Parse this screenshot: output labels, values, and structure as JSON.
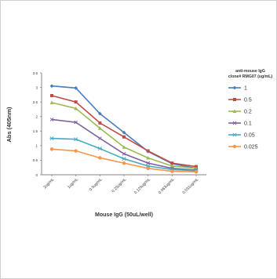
{
  "chart_data": {
    "type": "line",
    "categories": [
      "2ug/mL",
      "1ug/mL",
      "0.5ug/mL",
      "0.25ug/mL",
      "0.125ug/mL",
      "0.063ug/mL",
      "0.031ug/mL"
    ],
    "xlabel": "Mouse IgG (50uL/well)",
    "ylabel": "Abs (405nm)",
    "ylim": [
      0,
      3.5
    ],
    "yticks": [
      "0",
      "0.5",
      "1",
      "1.5",
      "2",
      "2.5",
      "3",
      "3.5"
    ],
    "grid": false,
    "legend_title": [
      "anti-mouse IgG",
      "clone# RMG07 (ug/mL)"
    ],
    "legend_position": "right",
    "series": [
      {
        "name": "1",
        "color": "#4a7ebb",
        "marker": "diamond",
        "values": [
          3.05,
          2.98,
          2.1,
          1.45,
          0.8,
          0.38,
          0.22
        ]
      },
      {
        "name": "0.5",
        "color": "#be4b48",
        "marker": "square",
        "values": [
          2.72,
          2.5,
          1.78,
          1.3,
          0.82,
          0.4,
          0.28
        ]
      },
      {
        "name": "0.2",
        "color": "#98b954",
        "marker": "triangle",
        "values": [
          2.48,
          2.28,
          1.6,
          0.95,
          0.58,
          0.3,
          0.22
        ]
      },
      {
        "name": "0.1",
        "color": "#7d60a0",
        "marker": "x",
        "values": [
          1.9,
          1.8,
          1.25,
          0.72,
          0.4,
          0.22,
          0.16
        ]
      },
      {
        "name": "0.05",
        "color": "#46aac5",
        "marker": "asterisk",
        "values": [
          1.25,
          1.22,
          0.9,
          0.55,
          0.3,
          0.18,
          0.14
        ]
      },
      {
        "name": "0.025",
        "color": "#f79646",
        "marker": "circle",
        "values": [
          0.88,
          0.82,
          0.58,
          0.4,
          0.22,
          0.12,
          0.1
        ]
      }
    ]
  }
}
